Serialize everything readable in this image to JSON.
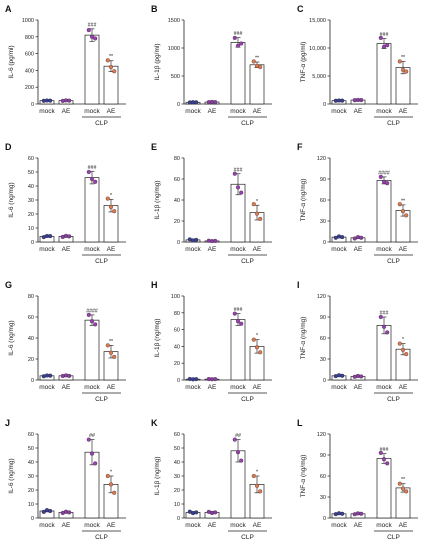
{
  "figure": {
    "groups": [
      "mock",
      "AE",
      "mock",
      "AE"
    ],
    "bracket_label": "CLP",
    "colors": {
      "mock_fill": "#3a3f8f",
      "ae_fill": "#8a3fa0",
      "clp_mock_fill": "#9a3fb0",
      "clp_ae_fill": "#e07850",
      "bar_stroke": "#222222",
      "axis": "#222222"
    }
  },
  "chart_data": [
    {
      "panel": "A",
      "type": "bar",
      "ylabel": "IL-6  (pg/ml)",
      "ylim": [
        0,
        1000
      ],
      "yticks": [
        0,
        200,
        400,
        600,
        800,
        1000
      ],
      "categories": [
        "mock",
        "AE",
        "mock",
        "AE"
      ],
      "values": [
        40,
        40,
        820,
        450
      ],
      "errors": [
        8,
        8,
        75,
        65
      ],
      "points": [
        [
          38,
          42,
          40
        ],
        [
          37,
          43,
          40
        ],
        [
          880,
          800,
          780
        ],
        [
          520,
          440,
          390
        ]
      ],
      "sig": [
        "",
        "",
        "###",
        "**"
      ]
    },
    {
      "panel": "B",
      "type": "bar",
      "ylabel": "IL-1β  (pg/ml)",
      "ylim": [
        0,
        1500
      ],
      "yticks": [
        0,
        500,
        1000,
        1500
      ],
      "categories": [
        "mock",
        "AE",
        "mock",
        "AE"
      ],
      "values": [
        30,
        35,
        1100,
        700
      ],
      "errors": [
        8,
        8,
        85,
        50
      ],
      "points": [
        [
          28,
          32,
          30
        ],
        [
          33,
          38,
          34
        ],
        [
          1180,
          1040,
          1080
        ],
        [
          760,
          680,
          660
        ]
      ],
      "sig": [
        "",
        "",
        "###",
        "**"
      ]
    },
    {
      "panel": "C",
      "type": "bar",
      "ylabel": "TNF-α  (pg/ml)",
      "ylim": [
        0,
        15000
      ],
      "yticks": [
        0,
        5000,
        10000,
        15000
      ],
      "yticklabels": [
        "0",
        "5,000",
        "10,000",
        "15,000"
      ],
      "categories": [
        "mock",
        "AE",
        "mock",
        "AE"
      ],
      "values": [
        600,
        700,
        10800,
        6500
      ],
      "errors": [
        80,
        80,
        900,
        1100
      ],
      "points": [
        [
          580,
          620,
          600
        ],
        [
          680,
          720,
          700
        ],
        [
          11800,
          10200,
          10500
        ],
        [
          7600,
          6100,
          5800
        ]
      ],
      "sig": [
        "",
        "",
        "###",
        "**"
      ]
    },
    {
      "panel": "D",
      "type": "bar",
      "ylabel": "IL-6  (ng/mg)",
      "ylim": [
        0,
        60
      ],
      "yticks": [
        0,
        10,
        20,
        30,
        40,
        50,
        60
      ],
      "categories": [
        "mock",
        "AE",
        "mock",
        "AE"
      ],
      "values": [
        4,
        4,
        46,
        26
      ],
      "errors": [
        0.6,
        0.6,
        4.5,
        4.5
      ],
      "points": [
        [
          3.5,
          4.3,
          4.2
        ],
        [
          3.6,
          4.4,
          4.0
        ],
        [
          50,
          45,
          43
        ],
        [
          31,
          25,
          22
        ]
      ],
      "sig": [
        "",
        "",
        "###",
        "*"
      ]
    },
    {
      "panel": "E",
      "type": "bar",
      "ylabel": "IL-1β  (ng/mg)",
      "ylim": [
        0,
        80
      ],
      "yticks": [
        0,
        20,
        40,
        60,
        80
      ],
      "categories": [
        "mock",
        "AE",
        "mock",
        "AE"
      ],
      "values": [
        2,
        1,
        55,
        28
      ],
      "errors": [
        0.8,
        0.5,
        10,
        7
      ],
      "points": [
        [
          2.5,
          1.5,
          2.0
        ],
        [
          1.2,
          0.8,
          1.0
        ],
        [
          65,
          52,
          47
        ],
        [
          36,
          27,
          22
        ]
      ],
      "sig": [
        "",
        "",
        "###",
        "*"
      ]
    },
    {
      "panel": "F",
      "type": "bar",
      "ylabel": "TNF-α  (ng/mg)",
      "ylim": [
        0,
        120
      ],
      "yticks": [
        0,
        30,
        60,
        90,
        120
      ],
      "categories": [
        "mock",
        "AE",
        "mock",
        "AE"
      ],
      "values": [
        7,
        6,
        88,
        45
      ],
      "errors": [
        1.2,
        1.0,
        5,
        8
      ],
      "points": [
        [
          6,
          8,
          7
        ],
        [
          5,
          7,
          6
        ],
        [
          93,
          86,
          84
        ],
        [
          54,
          44,
          38
        ]
      ],
      "sig": [
        "",
        "",
        "####",
        "**"
      ]
    },
    {
      "panel": "G",
      "type": "bar",
      "ylabel": "IL-6  (ng/mg)",
      "ylim": [
        0,
        80
      ],
      "yticks": [
        0,
        20,
        40,
        60,
        80
      ],
      "categories": [
        "mock",
        "AE",
        "mock",
        "AE"
      ],
      "values": [
        4,
        4,
        57,
        27
      ],
      "errors": [
        0.5,
        0.5,
        5,
        6
      ],
      "points": [
        [
          3.6,
          4.3,
          4.1
        ],
        [
          3.8,
          4.4,
          3.9
        ],
        [
          62,
          56,
          53
        ],
        [
          33,
          26,
          22
        ]
      ],
      "sig": [
        "",
        "",
        "####",
        "**"
      ]
    },
    {
      "panel": "H",
      "type": "bar",
      "ylabel": "IL-1β  (ng/mg)",
      "ylim": [
        0,
        100
      ],
      "yticks": [
        0,
        20,
        40,
        60,
        80,
        100
      ],
      "categories": [
        "mock",
        "AE",
        "mock",
        "AE"
      ],
      "values": [
        1,
        1,
        72,
        40
      ],
      "errors": [
        0.4,
        0.4,
        7,
        8
      ],
      "points": [
        [
          1.2,
          0.8,
          1.0
        ],
        [
          1.1,
          0.9,
          1.0
        ],
        [
          79,
          70,
          67
        ],
        [
          48,
          39,
          33
        ]
      ],
      "sig": [
        "",
        "",
        "###",
        "*"
      ]
    },
    {
      "panel": "I",
      "type": "bar",
      "ylabel": "TNF-α  (ng/mg)",
      "ylim": [
        0,
        120
      ],
      "yticks": [
        0,
        30,
        60,
        90,
        120
      ],
      "categories": [
        "mock",
        "AE",
        "mock",
        "AE"
      ],
      "values": [
        6,
        5,
        78,
        44
      ],
      "errors": [
        0.8,
        0.8,
        12,
        8
      ],
      "points": [
        [
          5.5,
          6.8,
          6.0
        ],
        [
          4.6,
          5.8,
          5.0
        ],
        [
          90,
          76,
          68
        ],
        [
          52,
          43,
          37
        ]
      ],
      "sig": [
        "",
        "",
        "###",
        "*"
      ]
    },
    {
      "panel": "J",
      "type": "bar",
      "ylabel": "IL-6  (ng/mg)",
      "ylim": [
        0,
        60
      ],
      "yticks": [
        0,
        10,
        20,
        30,
        40,
        50,
        60
      ],
      "categories": [
        "mock",
        "AE",
        "mock",
        "AE"
      ],
      "values": [
        5,
        4,
        47,
        24
      ],
      "errors": [
        0.6,
        0.6,
        9,
        6
      ],
      "points": [
        [
          4.4,
          5.6,
          5.0
        ],
        [
          3.6,
          4.5,
          4.0
        ],
        [
          56,
          46,
          39
        ],
        [
          30,
          24,
          18
        ]
      ],
      "sig": [
        "",
        "",
        "##",
        "*"
      ]
    },
    {
      "panel": "K",
      "type": "bar",
      "ylabel": "IL-1β  (ng/mg)",
      "ylim": [
        0,
        60
      ],
      "yticks": [
        0,
        10,
        20,
        30,
        40,
        50,
        60
      ],
      "categories": [
        "mock",
        "AE",
        "mock",
        "AE"
      ],
      "values": [
        4,
        4,
        48,
        24
      ],
      "errors": [
        0.6,
        0.6,
        8,
        6
      ],
      "points": [
        [
          4.5,
          3.5,
          4.0
        ],
        [
          4.4,
          3.6,
          4.0
        ],
        [
          56,
          47,
          41
        ],
        [
          30,
          23,
          19
        ]
      ],
      "sig": [
        "",
        "",
        "##",
        "*"
      ]
    },
    {
      "panel": "L",
      "type": "bar",
      "ylabel": "TNF-α  (ng/mg)",
      "ylim": [
        0,
        120
      ],
      "yticks": [
        0,
        30,
        60,
        90,
        120
      ],
      "categories": [
        "mock",
        "AE",
        "mock",
        "AE"
      ],
      "values": [
        6,
        6,
        85,
        43
      ],
      "errors": [
        0.8,
        0.8,
        7,
        6
      ],
      "points": [
        [
          5.5,
          6.8,
          6.0
        ],
        [
          5.4,
          6.6,
          6.0
        ],
        [
          93,
          84,
          78
        ],
        [
          49,
          42,
          38
        ]
      ],
      "sig": [
        "",
        "",
        "###",
        "**"
      ]
    }
  ]
}
